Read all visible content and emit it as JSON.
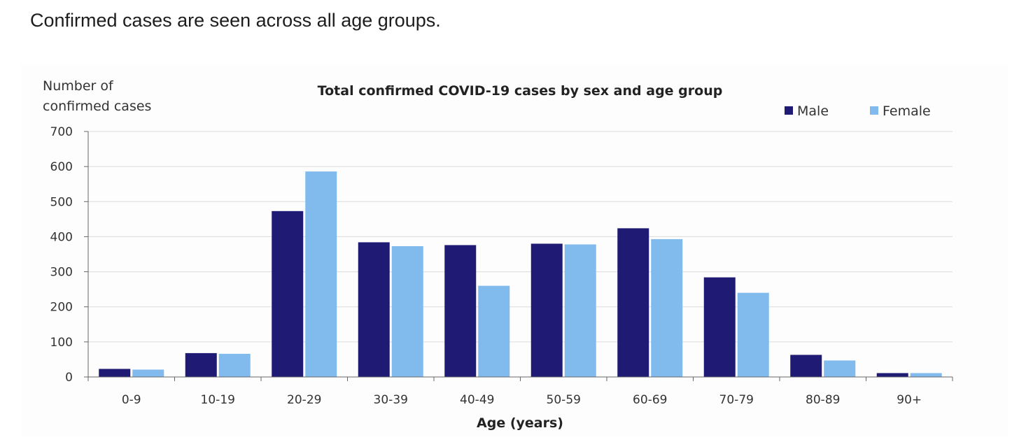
{
  "page": {
    "intro_text": "Confirmed cases are seen across all age groups."
  },
  "chart_data": {
    "type": "bar",
    "title": "Total confirmed COVID-19 cases by sex and age group",
    "ylabel_line1": "Number of",
    "ylabel_line2": "confirmed cases",
    "xlabel": "Age (years)",
    "categories": [
      "0-9",
      "10-19",
      "20-29",
      "30-39",
      "40-49",
      "50-59",
      "60-69",
      "70-79",
      "80-89",
      "90+"
    ],
    "series": [
      {
        "name": "Male",
        "color": "#1f1a73",
        "values": [
          23,
          68,
          473,
          384,
          376,
          380,
          424,
          284,
          63,
          11
        ]
      },
      {
        "name": "Female",
        "color": "#81bbee",
        "values": [
          21,
          66,
          586,
          373,
          260,
          378,
          393,
          240,
          47,
          11
        ]
      }
    ],
    "ylim": [
      0,
      700
    ],
    "yticks": [
      0,
      100,
      200,
      300,
      400,
      500,
      600,
      700
    ],
    "grid": true,
    "legend_position": "top-right"
  }
}
